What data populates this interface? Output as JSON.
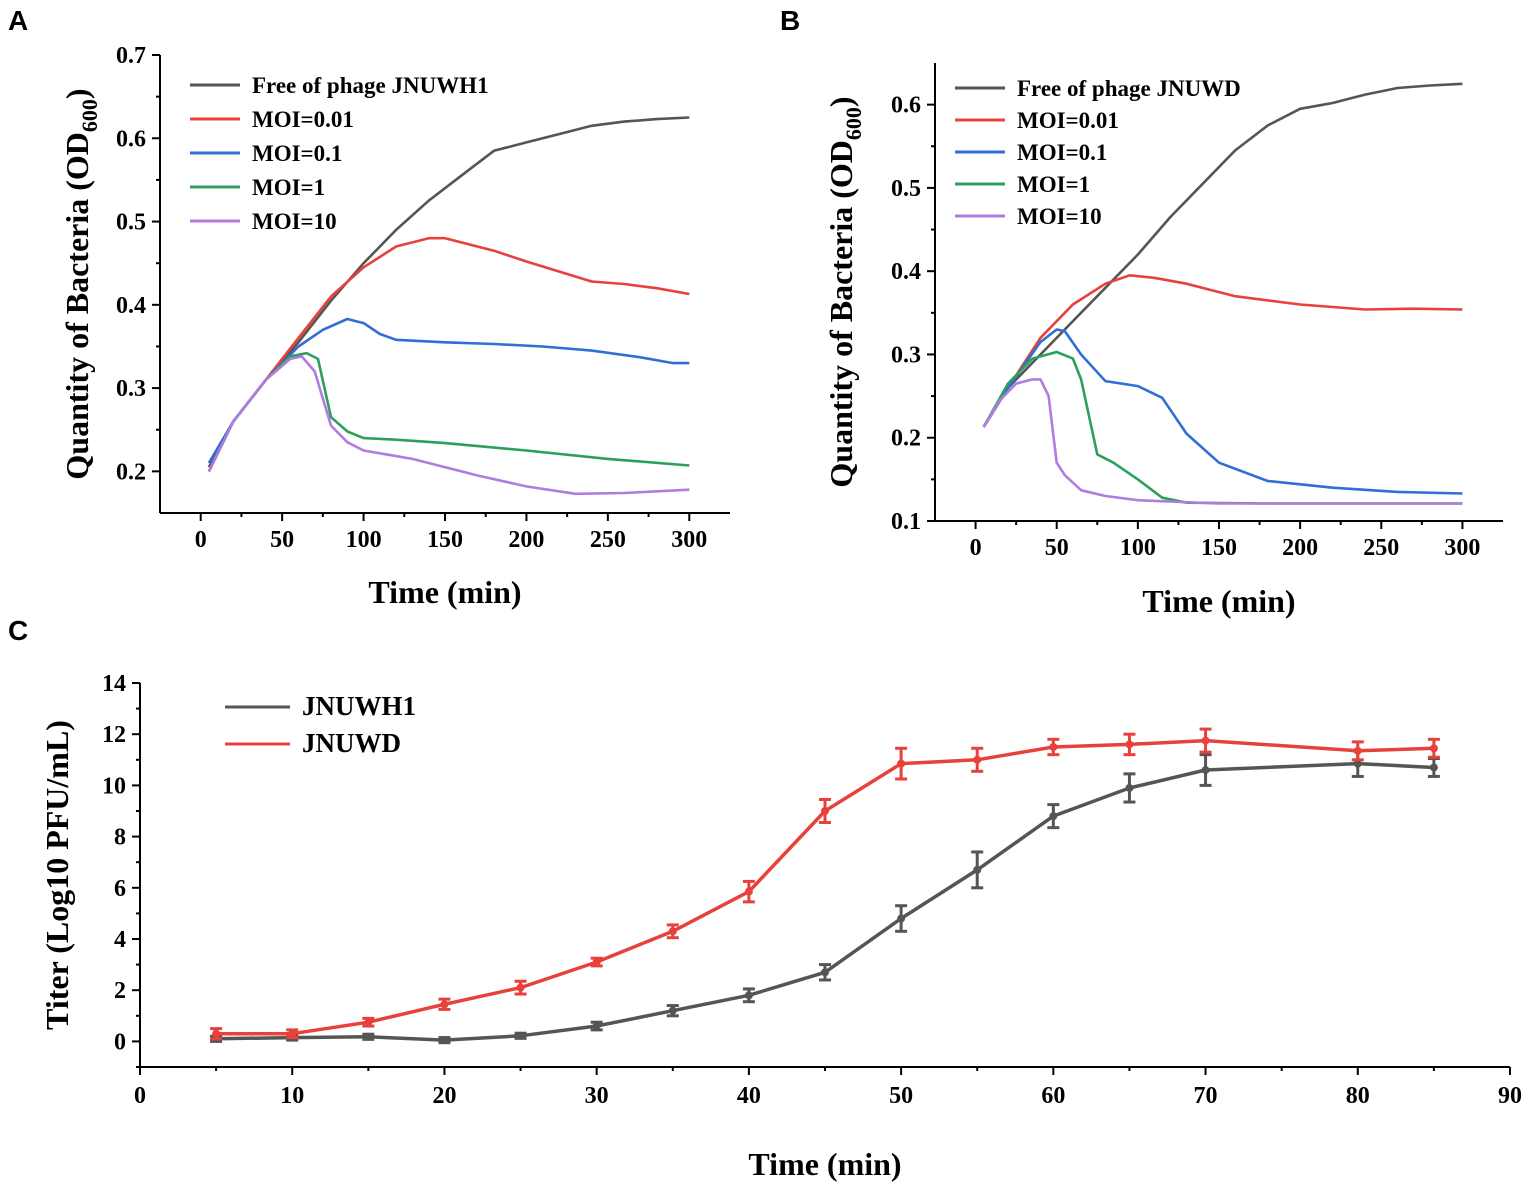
{
  "chart_data": [
    {
      "panel": "A",
      "type": "line",
      "xlabel": "Time (min)",
      "ylabel": "Quantity of Bacteria (OD600)",
      "ylabel_main": "Quantity of Bacteria (OD",
      "ylabel_sub": "600",
      "ylabel_end": ")",
      "xlim": [
        -25,
        325
      ],
      "ylim": [
        0.15,
        0.7
      ],
      "xticks": [
        0,
        50,
        100,
        150,
        200,
        250,
        300
      ],
      "yticks": [
        0.2,
        0.3,
        0.4,
        0.5,
        0.6,
        0.7
      ],
      "xtick_labels": [
        "0",
        "50",
        "100",
        "150",
        "200",
        "250",
        "300"
      ],
      "ytick_labels": [
        "0.2",
        "0.3",
        "0.4",
        "0.5",
        "0.6",
        "0.7"
      ],
      "legend_position": "top-left",
      "series": [
        {
          "name": "Free of phage JNUWH1",
          "color": "#555555",
          "x": [
            5,
            20,
            40,
            60,
            80,
            100,
            120,
            140,
            160,
            180,
            200,
            220,
            240,
            260,
            280,
            300
          ],
          "y": [
            0.205,
            0.26,
            0.31,
            0.355,
            0.405,
            0.45,
            0.49,
            0.525,
            0.555,
            0.585,
            0.595,
            0.605,
            0.615,
            0.62,
            0.623,
            0.625
          ]
        },
        {
          "name": "MOI=0.01",
          "color": "#e8403a",
          "x": [
            5,
            20,
            40,
            60,
            80,
            100,
            120,
            140,
            150,
            160,
            180,
            200,
            220,
            240,
            260,
            280,
            300
          ],
          "y": [
            0.2,
            0.26,
            0.31,
            0.36,
            0.41,
            0.445,
            0.47,
            0.48,
            0.48,
            0.475,
            0.465,
            0.452,
            0.44,
            0.428,
            0.425,
            0.42,
            0.413
          ]
        },
        {
          "name": "MOI=0.1",
          "color": "#2f6fd6",
          "x": [
            5,
            20,
            40,
            60,
            75,
            90,
            100,
            110,
            120,
            150,
            180,
            210,
            240,
            270,
            290,
            300
          ],
          "y": [
            0.21,
            0.26,
            0.31,
            0.35,
            0.37,
            0.383,
            0.378,
            0.365,
            0.358,
            0.355,
            0.353,
            0.35,
            0.345,
            0.337,
            0.33,
            0.33
          ]
        },
        {
          "name": "MOI=1",
          "color": "#2ca05a",
          "x": [
            5,
            20,
            40,
            55,
            65,
            72,
            80,
            90,
            100,
            120,
            150,
            200,
            250,
            300
          ],
          "y": [
            0.2,
            0.26,
            0.31,
            0.338,
            0.342,
            0.335,
            0.265,
            0.248,
            0.24,
            0.238,
            0.234,
            0.225,
            0.215,
            0.207
          ]
        },
        {
          "name": "MOI=10",
          "color": "#b07ce0",
          "x": [
            5,
            20,
            40,
            55,
            62,
            70,
            80,
            90,
            100,
            130,
            170,
            200,
            230,
            260,
            300
          ],
          "y": [
            0.2,
            0.26,
            0.31,
            0.335,
            0.338,
            0.32,
            0.255,
            0.235,
            0.225,
            0.215,
            0.195,
            0.182,
            0.173,
            0.174,
            0.178
          ]
        }
      ]
    },
    {
      "panel": "B",
      "type": "line",
      "xlabel": "Time (min)",
      "ylabel": "Quantity of Bacteria (OD600)",
      "ylabel_main": "Quantity of Bacteria (OD",
      "ylabel_sub": "600",
      "ylabel_end": ")",
      "xlim": [
        -25,
        325
      ],
      "ylim": [
        0.1,
        0.65
      ],
      "xticks": [
        0,
        50,
        100,
        150,
        200,
        250,
        300
      ],
      "yticks": [
        0.1,
        0.2,
        0.3,
        0.4,
        0.5,
        0.6
      ],
      "xtick_labels": [
        "0",
        "50",
        "100",
        "150",
        "200",
        "250",
        "300"
      ],
      "ytick_labels": [
        "0.1",
        "0.2",
        "0.3",
        "0.4",
        "0.5",
        "0.6"
      ],
      "legend_position": "top-left",
      "series": [
        {
          "name": "Free of phage JNUWD",
          "color": "#555555",
          "x": [
            5,
            20,
            40,
            60,
            80,
            100,
            120,
            140,
            160,
            180,
            200,
            220,
            240,
            260,
            280,
            300
          ],
          "y": [
            0.213,
            0.26,
            0.3,
            0.34,
            0.38,
            0.42,
            0.465,
            0.505,
            0.545,
            0.575,
            0.595,
            0.602,
            0.612,
            0.62,
            0.623,
            0.625
          ]
        },
        {
          "name": "MOI=0.01",
          "color": "#e8403a",
          "x": [
            5,
            20,
            40,
            60,
            80,
            95,
            110,
            130,
            160,
            200,
            240,
            270,
            300
          ],
          "y": [
            0.213,
            0.26,
            0.32,
            0.36,
            0.385,
            0.395,
            0.392,
            0.385,
            0.37,
            0.36,
            0.354,
            0.355,
            0.354
          ]
        },
        {
          "name": "MOI=0.1",
          "color": "#2f6fd6",
          "x": [
            5,
            20,
            40,
            50,
            55,
            65,
            80,
            100,
            115,
            130,
            150,
            180,
            220,
            260,
            300
          ],
          "y": [
            0.213,
            0.26,
            0.315,
            0.33,
            0.328,
            0.3,
            0.268,
            0.262,
            0.248,
            0.205,
            0.17,
            0.148,
            0.14,
            0.135,
            0.133
          ]
        },
        {
          "name": "MOI=1",
          "color": "#2ca05a",
          "x": [
            5,
            20,
            35,
            50,
            60,
            65,
            75,
            85,
            100,
            115,
            130,
            180,
            250,
            300
          ],
          "y": [
            0.213,
            0.265,
            0.295,
            0.303,
            0.295,
            0.27,
            0.18,
            0.17,
            0.15,
            0.128,
            0.122,
            0.121,
            0.121,
            0.121
          ]
        },
        {
          "name": "MOI=10",
          "color": "#b07ce0",
          "x": [
            5,
            15,
            25,
            35,
            40,
            45,
            50,
            55,
            65,
            80,
            100,
            150,
            200,
            300
          ],
          "y": [
            0.213,
            0.245,
            0.265,
            0.27,
            0.27,
            0.25,
            0.17,
            0.155,
            0.137,
            0.13,
            0.125,
            0.121,
            0.121,
            0.121
          ]
        }
      ]
    },
    {
      "panel": "C",
      "type": "line",
      "xlabel": "Time (min)",
      "ylabel": "Titer (Log10 PFU/mL)",
      "xlim": [
        0,
        90
      ],
      "ylim": [
        -1,
        14
      ],
      "xticks": [
        0,
        10,
        20,
        30,
        40,
        50,
        60,
        70,
        80,
        90
      ],
      "yticks": [
        0,
        2,
        4,
        6,
        8,
        10,
        12,
        14
      ],
      "xtick_labels": [
        "0",
        "10",
        "20",
        "30",
        "40",
        "50",
        "60",
        "70",
        "80",
        "90"
      ],
      "ytick_labels": [
        "0",
        "2",
        "4",
        "6",
        "8",
        "10",
        "12",
        "14"
      ],
      "legend_position": "top-left",
      "series": [
        {
          "name": "JNUWH1",
          "color": "#555555",
          "x": [
            5,
            10,
            15,
            20,
            25,
            30,
            35,
            40,
            45,
            50,
            55,
            60,
            65,
            70,
            80,
            85
          ],
          "y": [
            0.1,
            0.15,
            0.18,
            0.05,
            0.22,
            0.6,
            1.2,
            1.8,
            2.7,
            4.8,
            6.7,
            8.8,
            9.9,
            10.6,
            10.85,
            10.7
          ],
          "err": [
            0.1,
            0.1,
            0.1,
            0.1,
            0.1,
            0.15,
            0.2,
            0.25,
            0.3,
            0.5,
            0.7,
            0.45,
            0.55,
            0.6,
            0.5,
            0.35
          ]
        },
        {
          "name": "JNUWD",
          "color": "#e8403a",
          "x": [
            5,
            10,
            15,
            20,
            25,
            30,
            35,
            40,
            45,
            50,
            55,
            60,
            65,
            70,
            80,
            85
          ],
          "y": [
            0.3,
            0.3,
            0.75,
            1.45,
            2.1,
            3.1,
            4.3,
            5.85,
            9.0,
            10.85,
            11.0,
            11.5,
            11.6,
            11.75,
            11.35,
            11.45
          ],
          "err": [
            0.2,
            0.15,
            0.15,
            0.2,
            0.25,
            0.15,
            0.25,
            0.4,
            0.45,
            0.6,
            0.45,
            0.3,
            0.4,
            0.45,
            0.35,
            0.35
          ]
        }
      ]
    }
  ],
  "panel_letters": [
    "A",
    "B",
    "C"
  ]
}
